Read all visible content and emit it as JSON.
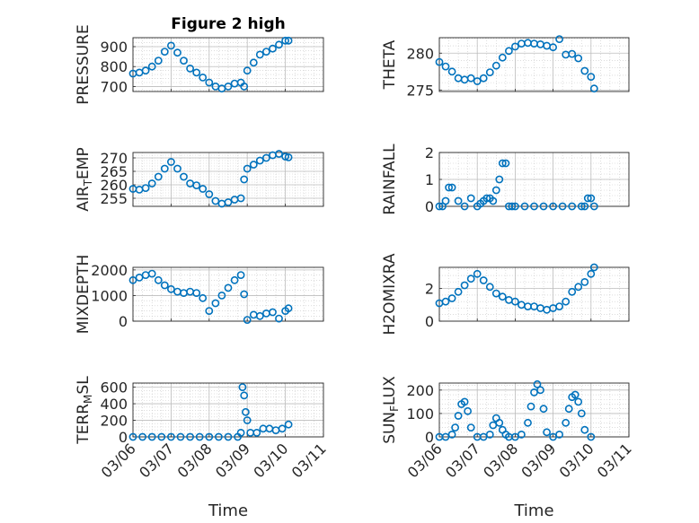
{
  "chart_data": [
    {
      "type": "scatter",
      "title": "Figure 2 high",
      "ylabel_parts": [
        {
          "t": "PRESSURE"
        }
      ],
      "yticks": [
        "700",
        "800",
        "900"
      ],
      "ylim": [
        675,
        945
      ],
      "xticks": [],
      "xlabel": "",
      "x": [
        "03/06 00:00",
        "03/06 04:00",
        "03/06 08:00",
        "03/06 12:00",
        "03/06 16:00",
        "03/06 20:00",
        "03/07 00:00",
        "03/07 04:00",
        "03/07 08:00",
        "03/07 12:00",
        "03/07 16:00",
        "03/07 20:00",
        "03/08 00:00",
        "03/08 04:00",
        "03/08 08:00",
        "03/08 12:00",
        "03/08 16:00",
        "03/08 20:00",
        "03/08 22:00",
        "03/09 00:00",
        "03/09 04:00",
        "03/09 08:00",
        "03/09 12:00",
        "03/09 16:00",
        "03/09 20:00",
        "03/10 00:00",
        "03/10 02:00"
      ],
      "y": [
        765,
        770,
        780,
        800,
        830,
        875,
        905,
        870,
        830,
        790,
        770,
        745,
        720,
        700,
        690,
        700,
        715,
        720,
        700,
        780,
        820,
        860,
        875,
        890,
        910,
        930,
        930
      ]
    },
    {
      "type": "scatter",
      "title": "",
      "ylabel_parts": [
        {
          "t": "THETA"
        }
      ],
      "yticks": [
        "275",
        "280"
      ],
      "ylim": [
        274.8,
        282.1
      ],
      "xticks": [],
      "xlabel": "",
      "x": [
        "03/06 00:00",
        "03/06 04:00",
        "03/06 08:00",
        "03/06 12:00",
        "03/06 16:00",
        "03/06 20:00",
        "03/07 00:00",
        "03/07 04:00",
        "03/07 08:00",
        "03/07 12:00",
        "03/07 16:00",
        "03/07 20:00",
        "03/08 00:00",
        "03/08 04:00",
        "03/08 08:00",
        "03/08 12:00",
        "03/08 16:00",
        "03/08 20:00",
        "03/09 00:00",
        "03/09 04:00",
        "03/09 08:00",
        "03/09 12:00",
        "03/09 16:00",
        "03/09 20:00",
        "03/10 00:00",
        "03/10 02:00"
      ],
      "y": [
        278.8,
        278.2,
        277.5,
        276.6,
        276.4,
        276.6,
        276.2,
        276.6,
        277.4,
        278.3,
        279.4,
        280.3,
        280.9,
        281.3,
        281.4,
        281.3,
        281.2,
        281.0,
        280.8,
        281.9,
        279.8,
        279.9,
        279.3,
        277.6,
        276.8,
        275.2
      ]
    },
    {
      "type": "scatter",
      "title": "",
      "ylabel_parts": [
        {
          "t": "AIR"
        },
        {
          "t": "T",
          "sub": true
        },
        {
          "t": "EMP"
        }
      ],
      "yticks": [
        "255",
        "260",
        "265",
        "270"
      ],
      "ylim": [
        252,
        272
      ],
      "xticks": [],
      "xlabel": "",
      "x": [
        "03/06 00:00",
        "03/06 04:00",
        "03/06 08:00",
        "03/06 12:00",
        "03/06 16:00",
        "03/06 20:00",
        "03/07 00:00",
        "03/07 04:00",
        "03/07 08:00",
        "03/07 12:00",
        "03/07 16:00",
        "03/07 20:00",
        "03/08 00:00",
        "03/08 04:00",
        "03/08 08:00",
        "03/08 12:00",
        "03/08 16:00",
        "03/08 20:00",
        "03/08 22:00",
        "03/09 00:00",
        "03/09 04:00",
        "03/09 08:00",
        "03/09 12:00",
        "03/09 16:00",
        "03/09 20:00",
        "03/10 00:00",
        "03/10 02:00"
      ],
      "y": [
        258.5,
        258.2,
        258.8,
        260.5,
        263,
        266,
        268.5,
        266,
        263,
        260.5,
        259.8,
        258.5,
        256.5,
        254,
        253,
        253.5,
        254.5,
        255,
        262,
        266,
        267.5,
        269,
        270,
        271,
        271.5,
        270.5,
        270.2
      ]
    },
    {
      "type": "scatter",
      "title": "",
      "ylabel_parts": [
        {
          "t": "RAINFALL"
        }
      ],
      "yticks": [
        "0",
        "1",
        "2"
      ],
      "ylim": [
        0,
        2
      ],
      "xticks": [],
      "xlabel": "",
      "x": [
        "03/06 00:00",
        "03/06 02:00",
        "03/06 04:00",
        "03/06 06:00",
        "03/06 08:00",
        "03/06 12:00",
        "03/06 16:00",
        "03/06 20:00",
        "03/07 00:00",
        "03/07 02:00",
        "03/07 04:00",
        "03/07 06:00",
        "03/07 08:00",
        "03/07 10:00",
        "03/07 12:00",
        "03/07 14:00",
        "03/07 16:00",
        "03/07 18:00",
        "03/07 20:00",
        "03/07 22:00",
        "03/08 00:00",
        "03/08 06:00",
        "03/08 12:00",
        "03/08 18:00",
        "03/09 00:00",
        "03/09 06:00",
        "03/09 12:00",
        "03/09 18:00",
        "03/09 20:00",
        "03/09 22:00",
        "03/10 00:00",
        "03/10 02:00"
      ],
      "y": [
        0,
        0,
        0.2,
        0.7,
        0.7,
        0.2,
        0,
        0.3,
        0,
        0.1,
        0.2,
        0.3,
        0.3,
        0.2,
        0.6,
        1.0,
        1.6,
        1.6,
        0,
        0,
        0,
        0,
        0,
        0,
        0,
        0,
        0,
        0,
        0,
        0.3,
        0.3,
        0
      ]
    },
    {
      "type": "scatter",
      "title": "",
      "ylabel_parts": [
        {
          "t": "MIXDEPTH"
        }
      ],
      "yticks": [
        "0",
        "1000",
        "2000"
      ],
      "ylim": [
        0,
        2100
      ],
      "xticks": [],
      "xlabel": "",
      "x": [
        "03/06 00:00",
        "03/06 04:00",
        "03/06 08:00",
        "03/06 12:00",
        "03/06 16:00",
        "03/06 20:00",
        "03/07 00:00",
        "03/07 04:00",
        "03/07 08:00",
        "03/07 12:00",
        "03/07 16:00",
        "03/07 20:00",
        "03/08 00:00",
        "03/08 04:00",
        "03/08 08:00",
        "03/08 12:00",
        "03/08 16:00",
        "03/08 20:00",
        "03/08 22:00",
        "03/09 00:00",
        "03/09 04:00",
        "03/09 08:00",
        "03/09 12:00",
        "03/09 16:00",
        "03/09 20:00",
        "03/10 00:00",
        "03/10 02:00"
      ],
      "y": [
        1600,
        1700,
        1800,
        1850,
        1600,
        1400,
        1250,
        1150,
        1100,
        1150,
        1100,
        900,
        400,
        700,
        1000,
        1300,
        1600,
        1800,
        1050,
        50,
        250,
        200,
        300,
        350,
        100,
        400,
        500
      ]
    },
    {
      "type": "scatter",
      "title": "",
      "ylabel_parts": [
        {
          "t": "H2OMIXRA"
        }
      ],
      "yticks": [
        "0",
        "2"
      ],
      "ylim": [
        0,
        3.3
      ],
      "xticks": [],
      "xlabel": "",
      "x": [
        "03/06 00:00",
        "03/06 04:00",
        "03/06 08:00",
        "03/06 12:00",
        "03/06 16:00",
        "03/06 20:00",
        "03/07 00:00",
        "03/07 04:00",
        "03/07 08:00",
        "03/07 12:00",
        "03/07 16:00",
        "03/07 20:00",
        "03/08 00:00",
        "03/08 04:00",
        "03/08 08:00",
        "03/08 12:00",
        "03/08 16:00",
        "03/08 20:00",
        "03/09 00:00",
        "03/09 04:00",
        "03/09 08:00",
        "03/09 12:00",
        "03/09 16:00",
        "03/09 20:00",
        "03/10 00:00",
        "03/10 02:00"
      ],
      "y": [
        1.1,
        1.2,
        1.4,
        1.8,
        2.2,
        2.6,
        2.9,
        2.5,
        2.1,
        1.7,
        1.5,
        1.3,
        1.2,
        1.0,
        0.9,
        0.9,
        0.8,
        0.7,
        0.8,
        0.9,
        1.2,
        1.8,
        2.1,
        2.4,
        2.9,
        3.3
      ]
    },
    {
      "type": "scatter",
      "title": "",
      "ylabel_parts": [
        {
          "t": "TERR"
        },
        {
          "t": "M",
          "sub": true
        },
        {
          "t": "SL"
        }
      ],
      "yticks": [
        "0",
        "200",
        "400",
        "600"
      ],
      "ylim": [
        0,
        650
      ],
      "xticks": [
        "03/06",
        "03/07",
        "03/08",
        "03/09",
        "03/10",
        "03/11"
      ],
      "xlabel": "Time",
      "x": [
        "03/06 00:00",
        "03/06 06:00",
        "03/06 12:00",
        "03/06 18:00",
        "03/07 00:00",
        "03/07 06:00",
        "03/07 12:00",
        "03/07 18:00",
        "03/08 00:00",
        "03/08 06:00",
        "03/08 12:00",
        "03/08 18:00",
        "03/08 20:00",
        "03/08 21:00",
        "03/08 22:00",
        "03/08 23:00",
        "03/09 00:00",
        "03/09 02:00",
        "03/09 06:00",
        "03/09 10:00",
        "03/09 14:00",
        "03/09 18:00",
        "03/09 22:00",
        "03/10 02:00"
      ],
      "y": [
        0,
        0,
        0,
        0,
        0,
        0,
        0,
        0,
        0,
        0,
        0,
        0,
        50,
        600,
        500,
        300,
        200,
        50,
        50,
        100,
        100,
        80,
        100,
        150
      ]
    },
    {
      "type": "scatter",
      "title": "",
      "ylabel_parts": [
        {
          "t": "SUN"
        },
        {
          "t": "F",
          "sub": true
        },
        {
          "t": "LUX"
        }
      ],
      "yticks": [
        "0",
        "100",
        "200"
      ],
      "ylim": [
        0,
        230
      ],
      "xticks": [
        "03/06",
        "03/07",
        "03/08",
        "03/09",
        "03/10",
        "03/11"
      ],
      "xlabel": "Time",
      "x": [
        "03/06 00:00",
        "03/06 04:00",
        "03/06 08:00",
        "03/06 10:00",
        "03/06 12:00",
        "03/06 14:00",
        "03/06 16:00",
        "03/06 18:00",
        "03/06 20:00",
        "03/07 00:00",
        "03/07 04:00",
        "03/07 08:00",
        "03/07 10:00",
        "03/07 12:00",
        "03/07 14:00",
        "03/07 16:00",
        "03/07 18:00",
        "03/07 20:00",
        "03/08 00:00",
        "03/08 04:00",
        "03/08 08:00",
        "03/08 10:00",
        "03/08 12:00",
        "03/08 14:00",
        "03/08 16:00",
        "03/08 18:00",
        "03/08 20:00",
        "03/09 00:00",
        "03/09 04:00",
        "03/09 08:00",
        "03/09 10:00",
        "03/09 12:00",
        "03/09 14:00",
        "03/09 16:00",
        "03/09 18:00",
        "03/09 20:00",
        "03/10 00:00"
      ],
      "y": [
        0,
        0,
        10,
        40,
        90,
        140,
        150,
        110,
        40,
        0,
        0,
        10,
        50,
        80,
        60,
        30,
        10,
        0,
        0,
        10,
        60,
        130,
        190,
        225,
        200,
        120,
        20,
        0,
        10,
        60,
        120,
        170,
        180,
        150,
        100,
        30,
        0
      ]
    }
  ]
}
